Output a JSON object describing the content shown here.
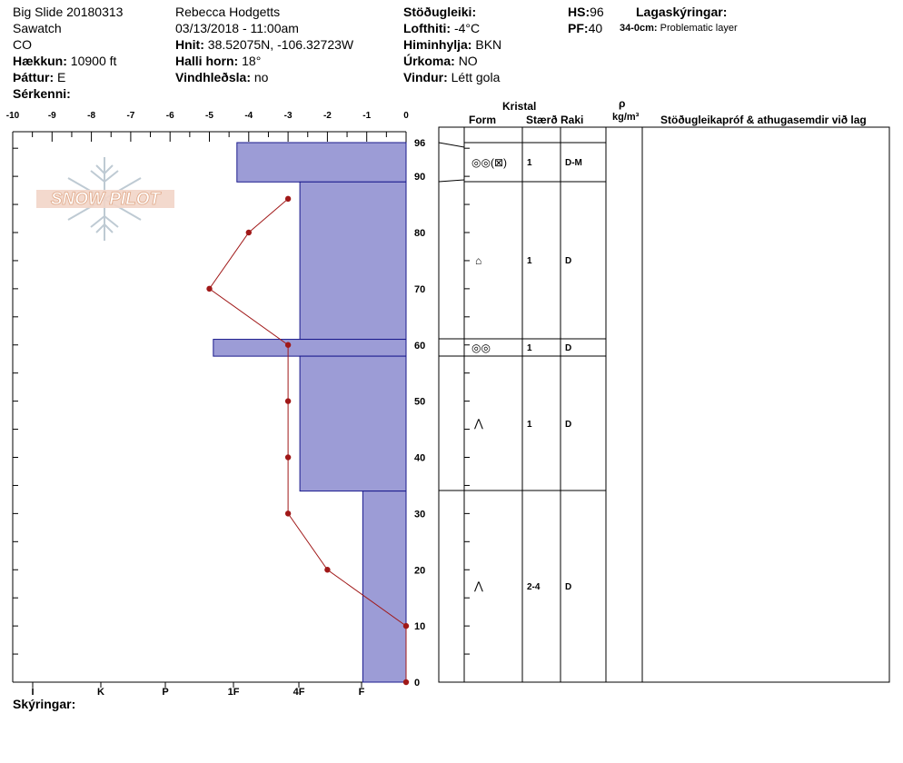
{
  "header": {
    "title": "Big Slide 20180313",
    "range": "Sawatch",
    "state": "CO",
    "elevation_label": "Hækkun:",
    "elevation_value": "10900 ft",
    "aspect_label": "Þáttur:",
    "aspect_value": "E",
    "specifics_label": "Sérkenni:",
    "observer": "Rebecca Hodgetts",
    "datetime": "03/13/2018 - 11:00am",
    "coords_label": "Hnit:",
    "coords_value": "38.52075N, -106.32723W",
    "slope_label": "Halli horn:",
    "slope_value": "18°",
    "wind_loading_label": "Vindhleðsla:",
    "wind_loading_value": "no",
    "stability_label": "Stöðugleiki:",
    "air_temp_label": "Lofthiti:",
    "air_temp_value": "-4°C",
    "sky_label": "Himinhylja:",
    "sky_value": "BKN",
    "precip_label": "Úrkoma:",
    "precip_value": "NO",
    "wind_label": "Vindur:",
    "wind_value": "Létt gola",
    "hs_label": "HS:",
    "hs_value": "96",
    "pf_label": "PF:",
    "pf_value": "40",
    "layer_notes_label": "Lagaskýringar:",
    "layer_note_depth": "34-0cm:",
    "layer_note_text": "Problematic layer"
  },
  "table_headers": {
    "crystal": "Kristal",
    "form": "Form",
    "size": "Stærð",
    "moisture": "Raki",
    "rho": "ρ",
    "density_unit": "kg/m³",
    "tests": "Stöðugleikapróf & athugasemdir við lag"
  },
  "footer": {
    "notes_label": "Skýringar:"
  },
  "logo": {
    "text": "SNOW PILOT"
  },
  "layers": [
    {
      "form": "◎◎(⊠)",
      "size": "1",
      "moisture": "D-M"
    },
    {
      "form": "⌂",
      "size": "1",
      "moisture": "D"
    },
    {
      "form": "◎◎",
      "size": "1",
      "moisture": "D"
    },
    {
      "form": "⋀",
      "size": "1",
      "moisture": "D"
    },
    {
      "form": "⋀",
      "size": "2-4",
      "moisture": "D"
    }
  ],
  "chart_data": {
    "type": "snow-profile",
    "temp_axis": {
      "ticks": [
        -10,
        -9,
        -8,
        -7,
        -6,
        -5,
        -4,
        -3,
        -2,
        -1,
        0
      ],
      "range": [
        -10,
        0
      ]
    },
    "height_axis": {
      "ticks": [
        0,
        10,
        20,
        30,
        40,
        50,
        60,
        70,
        80,
        90,
        96
      ],
      "range": [
        0,
        96
      ]
    },
    "hardness_axis": {
      "labels": [
        "I",
        "K",
        "P",
        "1F",
        "4F",
        "F"
      ]
    },
    "hardness_layers": [
      {
        "top": 96,
        "bottom": 89,
        "hardness_temp_scale": -4.3
      },
      {
        "top": 89,
        "bottom": 61,
        "hardness_temp_scale": -2.7
      },
      {
        "top": 61,
        "bottom": 58,
        "hardness_temp_scale": -4.9
      },
      {
        "top": 58,
        "bottom": 34,
        "hardness_temp_scale": -2.7
      },
      {
        "top": 34,
        "bottom": 0,
        "hardness_temp_scale": -1.1
      }
    ],
    "temperature_profile": [
      {
        "height": 86,
        "temp": -3
      },
      {
        "height": 80,
        "temp": -4
      },
      {
        "height": 70,
        "temp": -5
      },
      {
        "height": 60,
        "temp": -3
      },
      {
        "height": 50,
        "temp": -3
      },
      {
        "height": 40,
        "temp": -3
      },
      {
        "height": 30,
        "temp": -3
      },
      {
        "height": 20,
        "temp": -2
      },
      {
        "height": 10,
        "temp": 0
      },
      {
        "height": 0,
        "temp": 0
      }
    ],
    "colors": {
      "hardness_fill": "#9c9cd6",
      "hardness_stroke": "#1a1a8c",
      "temp_line": "#a01818"
    }
  }
}
